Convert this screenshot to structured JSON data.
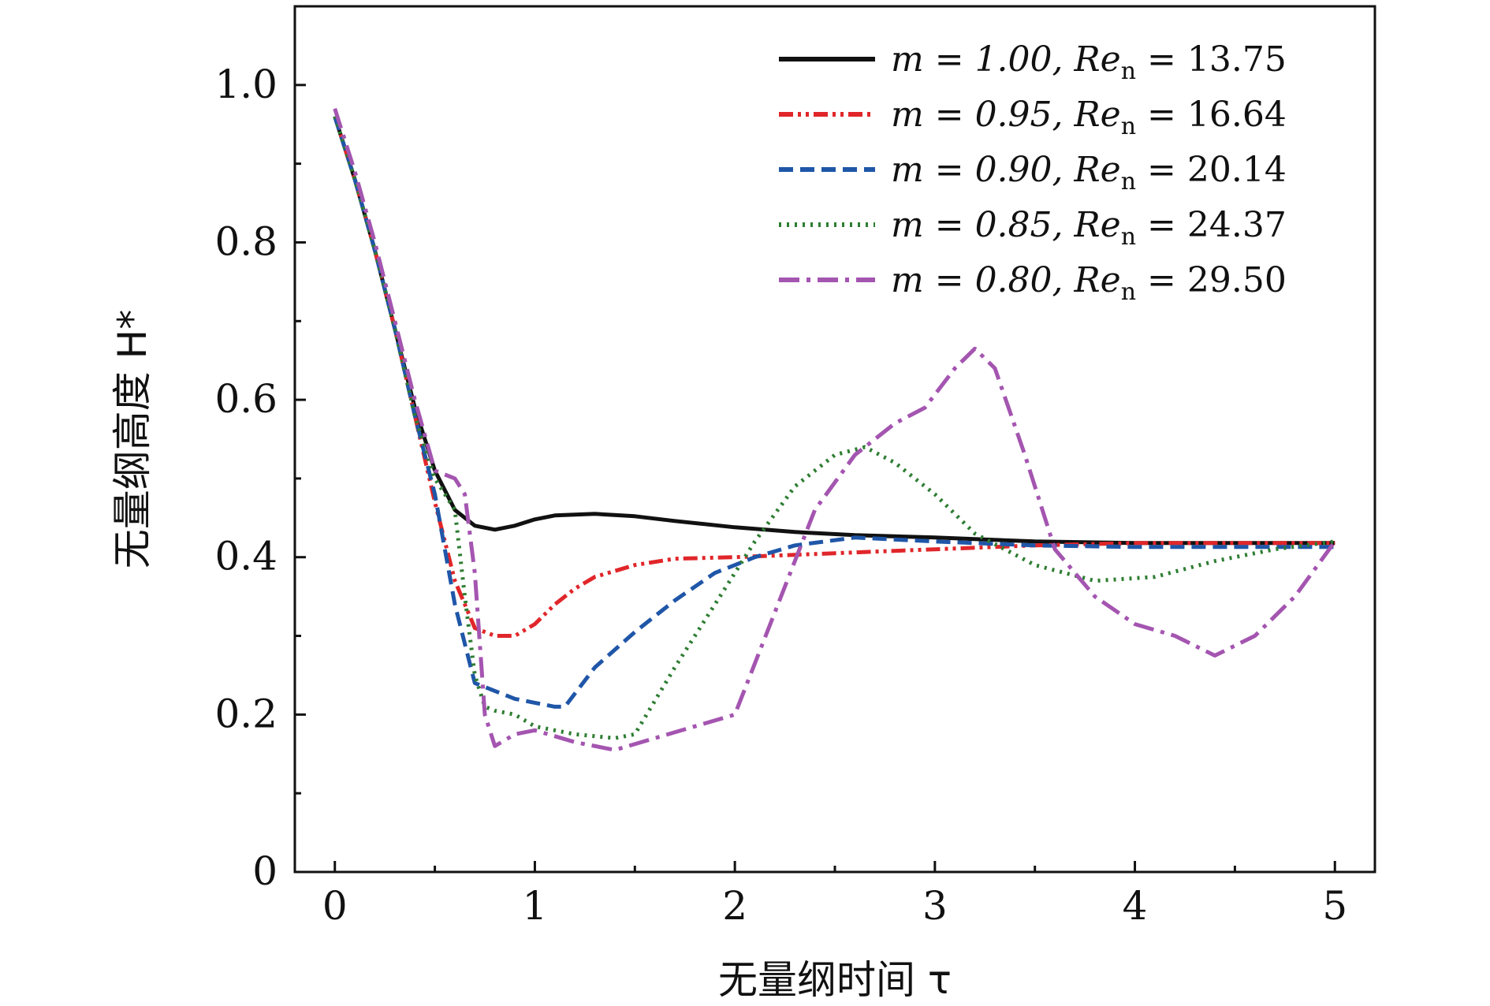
{
  "chart_data": {
    "type": "line",
    "title": "",
    "xlabel": "无量纲时间 τ",
    "ylabel": "无量纲高度 H*",
    "xlim": [
      -0.2,
      5.2
    ],
    "ylim": [
      0,
      1.1
    ],
    "xticks": [
      0,
      1,
      2,
      3,
      4,
      5
    ],
    "xtick_labels": [
      "0",
      "1",
      "2",
      "3",
      "4",
      "5"
    ],
    "yticks": [
      0,
      0.2,
      0.4,
      0.6,
      0.8,
      1.0
    ],
    "ytick_labels": [
      "0",
      "0.2",
      "0.4",
      "0.6",
      "0.8",
      "1.0"
    ],
    "grid": false,
    "legend_position": "top-right",
    "series": [
      {
        "name": "m = 1.00, Re_n = 13.75",
        "legend_m": "m = 1.00,",
        "legend_re": "Re",
        "legend_sub": "n",
        "legend_val": "= 13.75",
        "color": "#111111",
        "dash": "",
        "x": [
          0,
          0.1,
          0.2,
          0.3,
          0.4,
          0.5,
          0.6,
          0.7,
          0.8,
          0.9,
          1.0,
          1.1,
          1.3,
          1.5,
          1.7,
          2.0,
          2.3,
          2.6,
          3.0,
          3.5,
          4.0,
          4.5,
          5.0
        ],
        "y": [
          0.96,
          0.88,
          0.79,
          0.69,
          0.59,
          0.51,
          0.46,
          0.44,
          0.435,
          0.44,
          0.448,
          0.453,
          0.455,
          0.452,
          0.446,
          0.438,
          0.432,
          0.428,
          0.425,
          0.42,
          0.418,
          0.418,
          0.418
        ]
      },
      {
        "name": "m = 0.95, Re_n = 16.64",
        "legend_m": "m = 0.95,",
        "legend_re": "Re",
        "legend_sub": "n",
        "legend_val": "= 16.64",
        "color": "#e0262a",
        "dash": "18 6 4 6 4 6",
        "x": [
          0,
          0.1,
          0.2,
          0.3,
          0.4,
          0.5,
          0.6,
          0.7,
          0.8,
          0.9,
          1.0,
          1.1,
          1.2,
          1.3,
          1.5,
          1.7,
          2.0,
          2.5,
          3.0,
          3.5,
          4.0,
          4.5,
          5.0
        ],
        "y": [
          0.96,
          0.88,
          0.79,
          0.69,
          0.58,
          0.47,
          0.37,
          0.31,
          0.3,
          0.3,
          0.315,
          0.34,
          0.36,
          0.375,
          0.39,
          0.398,
          0.4,
          0.405,
          0.41,
          0.415,
          0.418,
          0.418,
          0.418
        ]
      },
      {
        "name": "m = 0.90, Re_n = 20.14",
        "legend_m": "m = 0.90,",
        "legend_re": "Re",
        "legend_sub": "n",
        "legend_val": "= 20.14",
        "color": "#1f56a8",
        "dash": "18 9",
        "x": [
          0,
          0.1,
          0.2,
          0.3,
          0.4,
          0.5,
          0.6,
          0.65,
          0.7,
          0.8,
          0.9,
          1.0,
          1.1,
          1.15,
          1.3,
          1.5,
          1.7,
          1.9,
          2.1,
          2.3,
          2.6,
          3.0,
          3.5,
          4.0,
          4.5,
          5.0
        ],
        "y": [
          0.96,
          0.88,
          0.79,
          0.69,
          0.58,
          0.48,
          0.34,
          0.29,
          0.24,
          0.23,
          0.22,
          0.215,
          0.21,
          0.21,
          0.26,
          0.305,
          0.345,
          0.38,
          0.4,
          0.415,
          0.425,
          0.42,
          0.415,
          0.413,
          0.413,
          0.413
        ]
      },
      {
        "name": "m = 0.85, Re_n = 24.37",
        "legend_m": "m = 0.85,",
        "legend_re": "Re",
        "legend_sub": "n",
        "legend_val": "= 24.37",
        "color": "#2e7d32",
        "dash": "3 7",
        "x": [
          0,
          0.1,
          0.2,
          0.3,
          0.4,
          0.5,
          0.6,
          0.65,
          0.7,
          0.75,
          0.8,
          0.9,
          1.0,
          1.2,
          1.4,
          1.5,
          1.7,
          1.9,
          2.1,
          2.3,
          2.5,
          2.65,
          2.8,
          3.0,
          3.2,
          3.5,
          3.8,
          4.1,
          4.4,
          4.7,
          5.0
        ],
        "y": [
          0.96,
          0.88,
          0.79,
          0.69,
          0.58,
          0.5,
          0.46,
          0.35,
          0.25,
          0.21,
          0.205,
          0.2,
          0.185,
          0.175,
          0.17,
          0.175,
          0.26,
          0.34,
          0.42,
          0.49,
          0.53,
          0.54,
          0.52,
          0.48,
          0.43,
          0.39,
          0.37,
          0.375,
          0.395,
          0.41,
          0.42
        ]
      },
      {
        "name": "m = 0.80, Re_n = 29.50",
        "legend_m": "m = 0.80,",
        "legend_re": "Re",
        "legend_sub": "n",
        "legend_val": "= 29.50",
        "color": "#a455b0",
        "dash": "26 9 5 9",
        "x": [
          0,
          0.1,
          0.2,
          0.3,
          0.4,
          0.5,
          0.6,
          0.65,
          0.7,
          0.75,
          0.8,
          0.9,
          1.0,
          1.2,
          1.4,
          1.6,
          1.8,
          2.0,
          2.2,
          2.4,
          2.6,
          2.8,
          2.95,
          3.1,
          3.2,
          3.3,
          3.45,
          3.6,
          3.8,
          4.0,
          4.2,
          4.4,
          4.6,
          4.8,
          5.0
        ],
        "y": [
          0.97,
          0.89,
          0.8,
          0.7,
          0.6,
          0.51,
          0.5,
          0.48,
          0.38,
          0.2,
          0.16,
          0.175,
          0.18,
          0.165,
          0.155,
          0.17,
          0.185,
          0.2,
          0.33,
          0.46,
          0.53,
          0.57,
          0.59,
          0.64,
          0.665,
          0.64,
          0.53,
          0.41,
          0.35,
          0.315,
          0.3,
          0.275,
          0.3,
          0.35,
          0.42
        ]
      }
    ]
  }
}
